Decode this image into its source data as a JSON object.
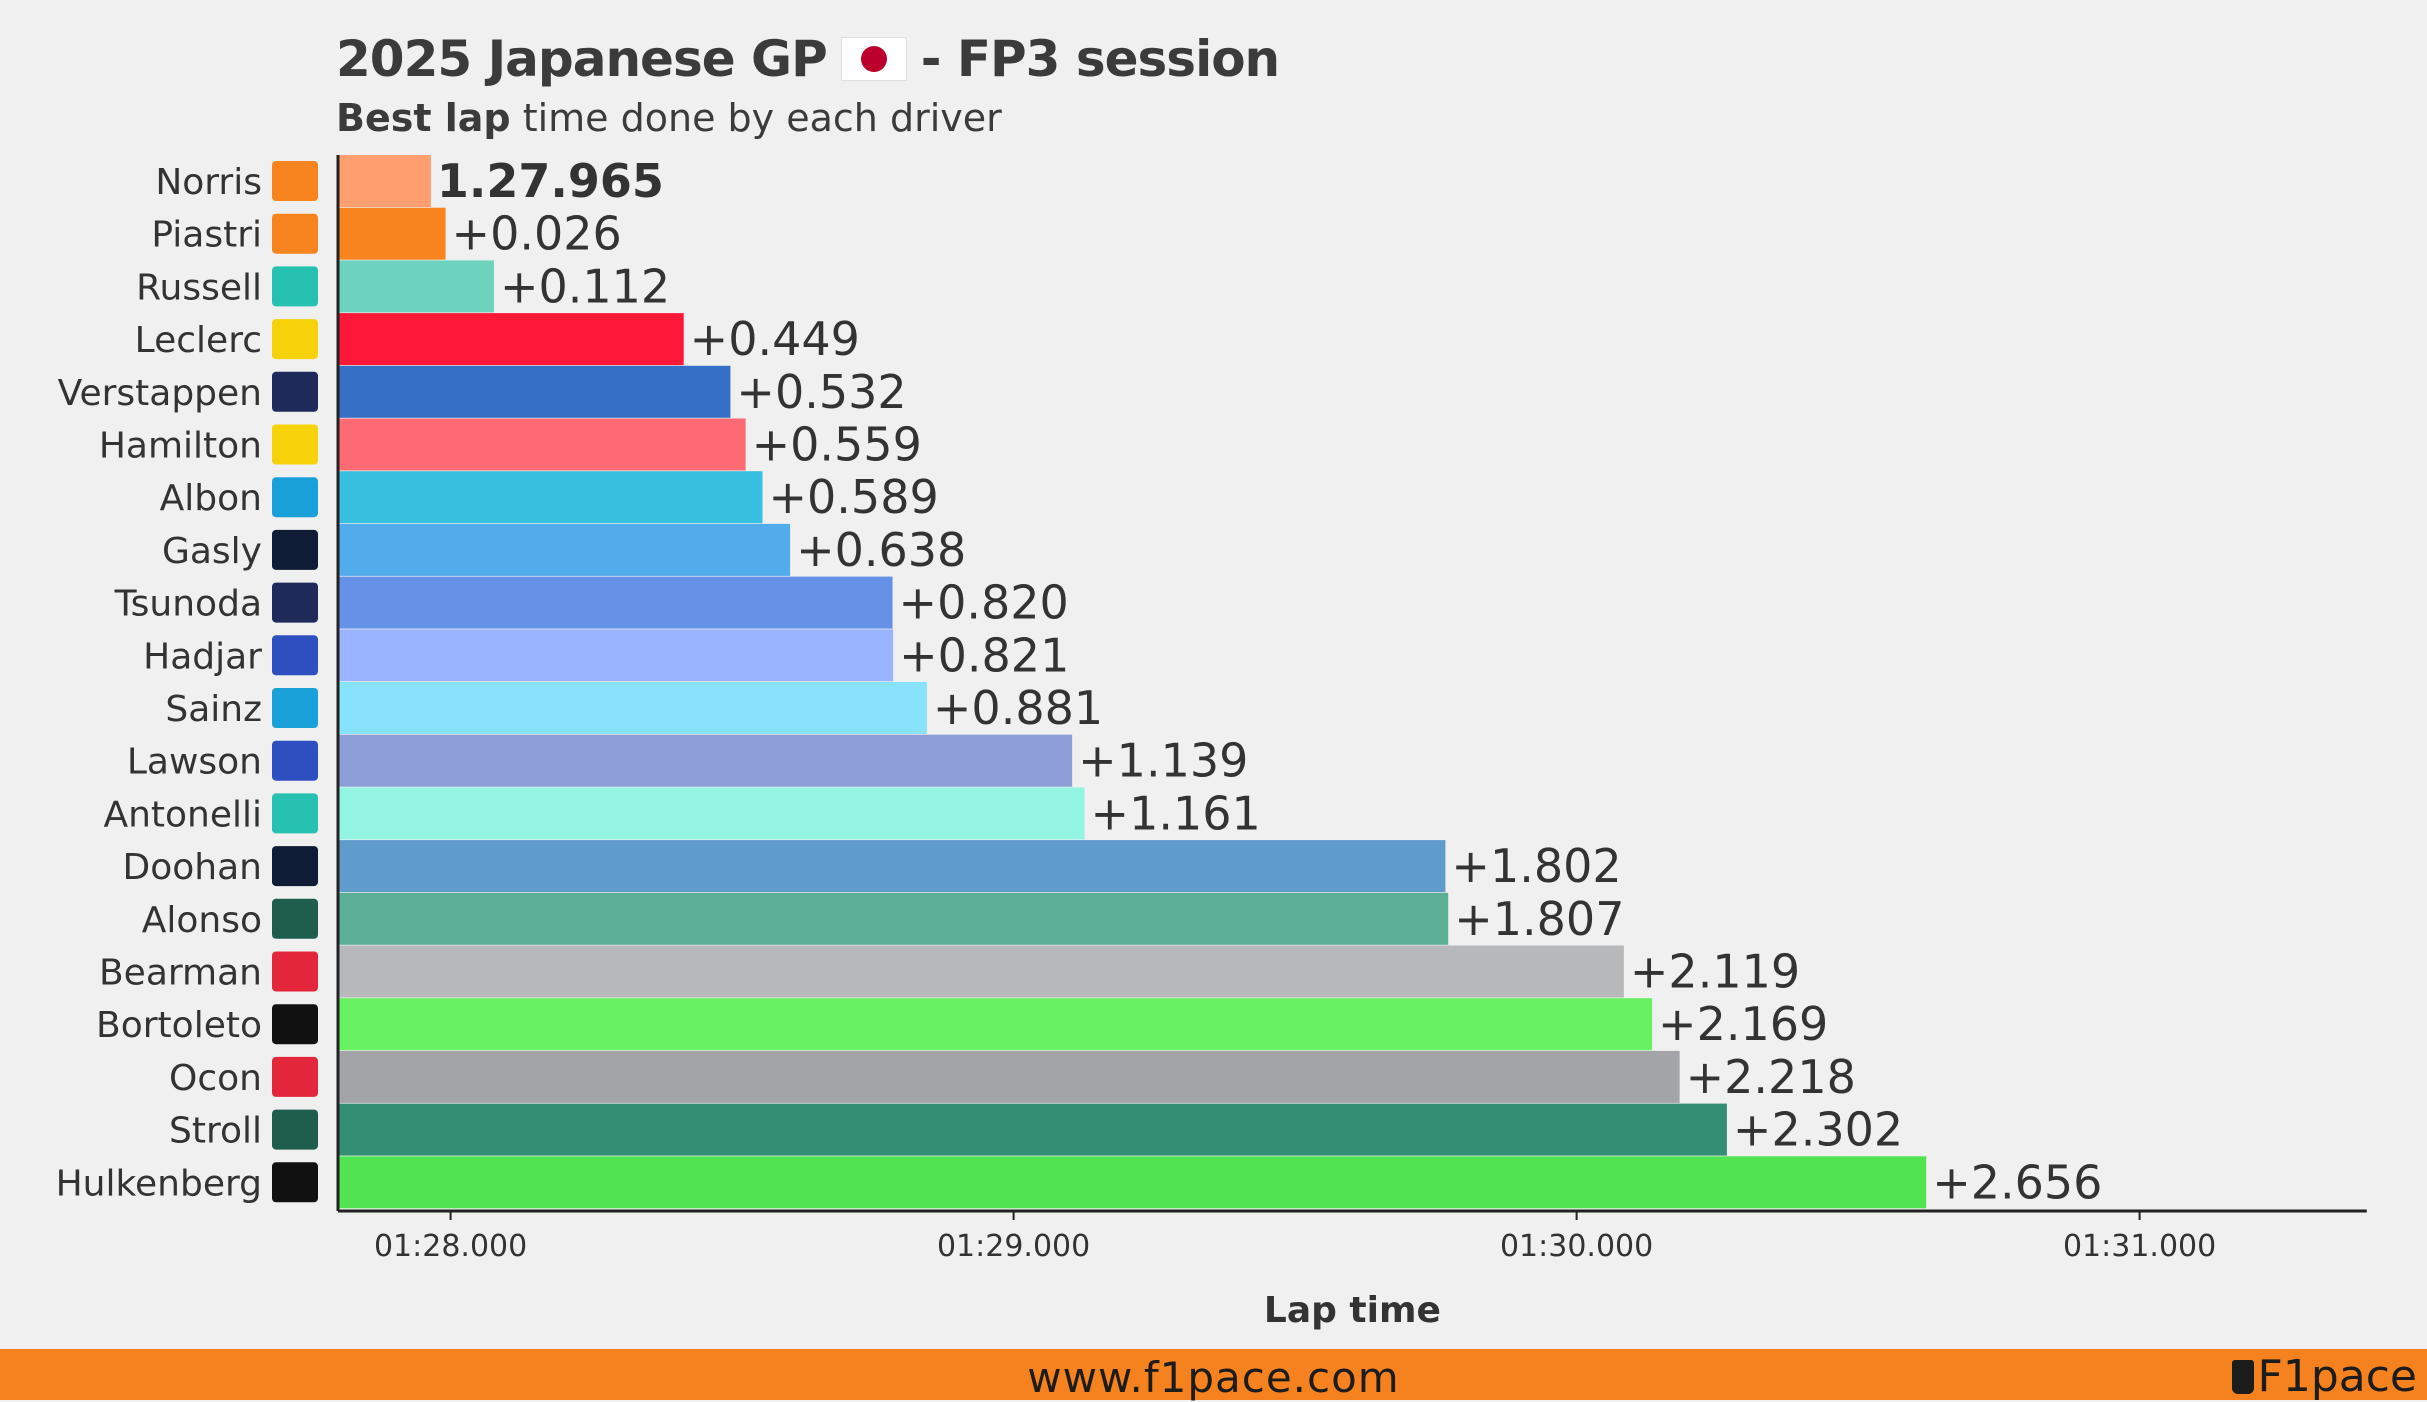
{
  "header": {
    "title_pre": "2025 Japanese GP",
    "title_post": "- FP3 session",
    "subtitle_bold": "Best lap",
    "subtitle_rest": " time done by each driver"
  },
  "chart_data": {
    "type": "bar",
    "orientation": "horizontal",
    "xlabel": "Lap time",
    "xlim": [
      87.8,
      91.4
    ],
    "xticks": [
      88,
      89,
      90,
      91
    ],
    "xtick_labels": [
      "01:28.000",
      "01:29.000",
      "01:30.000",
      "01:31.000"
    ],
    "categories": [
      "Norris",
      "Piastri",
      "Russell",
      "Leclerc",
      "Verstappen",
      "Hamilton",
      "Albon",
      "Gasly",
      "Tsunoda",
      "Hadjar",
      "Sainz",
      "Lawson",
      "Antonelli",
      "Doohan",
      "Alonso",
      "Bearman",
      "Bortoleto",
      "Ocon",
      "Stroll",
      "Hulkenberg"
    ],
    "values": [
      87.965,
      87.991,
      88.077,
      88.414,
      88.497,
      88.524,
      88.554,
      88.603,
      88.785,
      88.786,
      88.846,
      89.104,
      89.126,
      89.767,
      89.772,
      90.084,
      90.134,
      90.183,
      90.267,
      90.621
    ],
    "labels": [
      "1.27.965",
      "+0.026",
      "+0.112",
      "+0.449",
      "+0.532",
      "+0.559",
      "+0.589",
      "+0.638",
      "+0.820",
      "+0.821",
      "+0.881",
      "+1.139",
      "+1.161",
      "+1.802",
      "+1.807",
      "+2.119",
      "+2.169",
      "+2.218",
      "+2.302",
      "+2.656"
    ],
    "colors": [
      "#ff9f70",
      "#f7841e",
      "#6dd3bf",
      "#fd1838",
      "#3670c6",
      "#fe6a73",
      "#37bfe0",
      "#52acec",
      "#6591e7",
      "#9ab4ff",
      "#88e2fb",
      "#8c9ed8",
      "#92f4e1",
      "#5f9bcb",
      "#5caf94",
      "#b6b8ba",
      "#66f062",
      "#a3a4a7",
      "#348e74",
      "#52e352"
    ],
    "teams": [
      "mclaren",
      "mclaren",
      "mercedes",
      "ferrari",
      "red-bull",
      "ferrari",
      "williams",
      "alpine",
      "red-bull",
      "racing-bulls",
      "williams",
      "racing-bulls",
      "mercedes",
      "alpine",
      "aston-martin",
      "haas",
      "sauber",
      "haas",
      "aston-martin",
      "sauber"
    ]
  },
  "team_icon_colors": {
    "mclaren": "#f7841e",
    "mercedes": "#27c1b1",
    "ferrari": "#f5d20a",
    "red-bull": "#1e2a5a",
    "williams": "#1aa0d8",
    "alpine": "#0f1c36",
    "racing-bulls": "#2d4fbf",
    "aston-martin": "#1f5e4d",
    "haas": "#e3263a",
    "sauber": "#111111"
  },
  "footer": {
    "url": "www.f1pace.com",
    "brand": "F1pace"
  }
}
